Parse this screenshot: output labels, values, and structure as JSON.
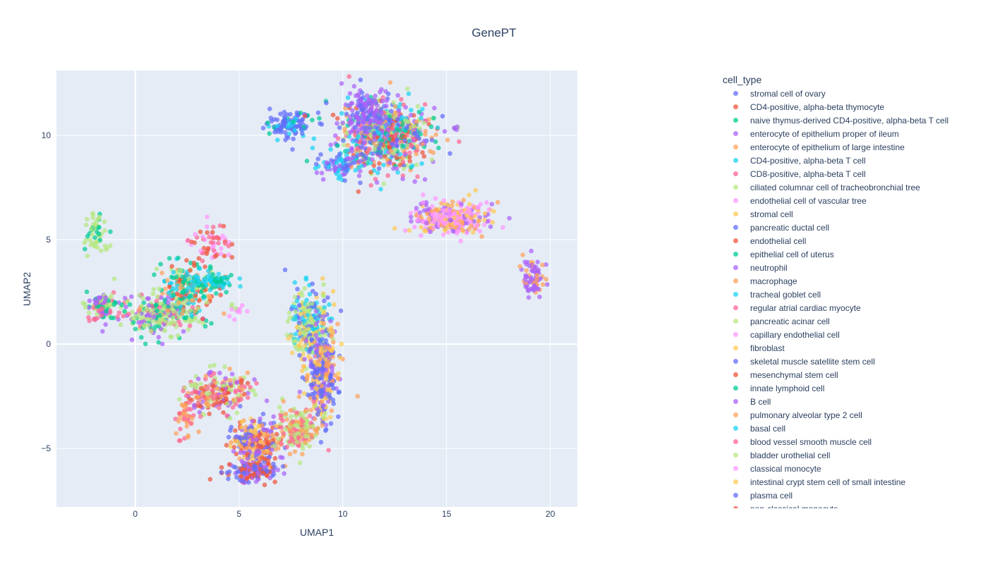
{
  "chart_data": {
    "type": "scatter",
    "title": "GenePT",
    "xlabel": "UMAP1",
    "ylabel": "UMAP2",
    "xlim": [
      -3.8,
      21.3
    ],
    "ylim": [
      -7.8,
      13.1
    ],
    "x_ticks": [
      0,
      5,
      10,
      15,
      20
    ],
    "x_tick_labels": [
      "0",
      "5",
      "10",
      "15",
      "20"
    ],
    "y_ticks": [
      -5,
      0,
      5,
      10
    ],
    "y_tick_labels": [
      "−5",
      "0",
      "5",
      "10"
    ],
    "grid": true,
    "legend_title": "cell_type",
    "legend_placement": "right",
    "legend": [
      {
        "name": "stromal cell of ovary",
        "color": "#636efa"
      },
      {
        "name": "CD4-positive, alpha-beta thymocyte",
        "color": "#EF553B"
      },
      {
        "name": "naive thymus-derived CD4-positive, alpha-beta T cell",
        "color": "#00cc96"
      },
      {
        "name": "enterocyte of epithelium proper of ileum",
        "color": "#ab63fa"
      },
      {
        "name": "enterocyte of epithelium of large intestine",
        "color": "#FFA15A"
      },
      {
        "name": "CD4-positive, alpha-beta T cell",
        "color": "#19d3f3"
      },
      {
        "name": "CD8-positive, alpha-beta T cell",
        "color": "#FF6692"
      },
      {
        "name": "ciliated columnar cell of tracheobronchial tree",
        "color": "#B6E880"
      },
      {
        "name": "endothelial cell of vascular tree",
        "color": "#FF97FF"
      },
      {
        "name": "stromal cell",
        "color": "#FECB52"
      },
      {
        "name": "pancreatic ductal cell",
        "color": "#636efa"
      },
      {
        "name": "endothelial cell",
        "color": "#EF553B"
      },
      {
        "name": "epithelial cell of uterus",
        "color": "#00cc96"
      },
      {
        "name": "neutrophil",
        "color": "#ab63fa"
      },
      {
        "name": "macrophage",
        "color": "#FFA15A"
      },
      {
        "name": "tracheal goblet cell",
        "color": "#19d3f3"
      },
      {
        "name": "regular atrial cardiac myocyte",
        "color": "#FF6692"
      },
      {
        "name": "pancreatic acinar cell",
        "color": "#B6E880"
      },
      {
        "name": "capillary endothelial cell",
        "color": "#FF97FF"
      },
      {
        "name": "fibroblast",
        "color": "#FECB52"
      },
      {
        "name": "skeletal muscle satellite stem cell",
        "color": "#636efa"
      },
      {
        "name": "mesenchymal stem cell",
        "color": "#EF553B"
      },
      {
        "name": "innate lymphoid cell",
        "color": "#00cc96"
      },
      {
        "name": "B cell",
        "color": "#ab63fa"
      },
      {
        "name": "pulmonary alveolar type 2 cell",
        "color": "#FFA15A"
      },
      {
        "name": "basal cell",
        "color": "#19d3f3"
      },
      {
        "name": "blood vessel smooth muscle cell",
        "color": "#FF6692"
      },
      {
        "name": "bladder urothelial cell",
        "color": "#B6E880"
      },
      {
        "name": "classical monocyte",
        "color": "#FF97FF"
      },
      {
        "name": "intestinal crypt stem cell of small intestine",
        "color": "#FECB52"
      },
      {
        "name": "plasma cell",
        "color": "#636efa"
      },
      {
        "name": "non-classical monocyte",
        "color": "#EF553B"
      }
    ],
    "clusters": [
      {
        "cx": 7.4,
        "cy": 10.5,
        "sx": 0.6,
        "sy": 0.3,
        "n": 110,
        "palette": [
          "#636efa",
          "#636efa",
          "#636efa",
          "#00cc96",
          "#19d3f3"
        ]
      },
      {
        "cx": 12.0,
        "cy": 10.0,
        "sx": 1.1,
        "sy": 0.8,
        "n": 700,
        "palette": [
          "#00cc96",
          "#19d3f3",
          "#FF6692",
          "#ab63fa",
          "#EF553B",
          "#FFA15A",
          "#636efa",
          "#B6E880"
        ]
      },
      {
        "cx": 11.2,
        "cy": 11.0,
        "sx": 0.6,
        "sy": 0.6,
        "n": 150,
        "palette": [
          "#ab63fa",
          "#ab63fa",
          "#636efa"
        ]
      },
      {
        "cx": 10.0,
        "cy": 8.6,
        "sx": 0.5,
        "sy": 0.3,
        "n": 90,
        "palette": [
          "#ab63fa",
          "#636efa",
          "#19d3f3"
        ]
      },
      {
        "cx": 15.2,
        "cy": 6.0,
        "sx": 0.9,
        "sy": 0.4,
        "n": 320,
        "palette": [
          "#FF97FF",
          "#FF97FF",
          "#FFA15A",
          "#FECB52",
          "#ab63fa"
        ]
      },
      {
        "cx": 19.2,
        "cy": 3.2,
        "sx": 0.25,
        "sy": 0.5,
        "n": 80,
        "palette": [
          "#ab63fa",
          "#ab63fa",
          "#FFA15A"
        ]
      },
      {
        "cx": 1.2,
        "cy": 1.4,
        "sx": 0.9,
        "sy": 0.5,
        "n": 260,
        "palette": [
          "#B6E880",
          "#B6E880",
          "#00cc96",
          "#FF6692",
          "#ab63fa"
        ]
      },
      {
        "cx": -1.5,
        "cy": 1.8,
        "sx": 0.4,
        "sy": 0.4,
        "n": 110,
        "palette": [
          "#ab63fa",
          "#00cc96",
          "#B6E880",
          "#FF6692"
        ]
      },
      {
        "cx": 2.6,
        "cy": 2.7,
        "sx": 0.7,
        "sy": 0.6,
        "n": 220,
        "palette": [
          "#FFA15A",
          "#00cc96",
          "#19d3f3",
          "#EF553B",
          "#B6E880"
        ]
      },
      {
        "cx": 3.6,
        "cy": 3.0,
        "sx": 0.6,
        "sy": 0.2,
        "n": 70,
        "palette": [
          "#19d3f3",
          "#19d3f3",
          "#00cc96"
        ]
      },
      {
        "cx": 3.7,
        "cy": 4.8,
        "sx": 0.5,
        "sy": 0.5,
        "n": 60,
        "palette": [
          "#FF6692",
          "#EF553B",
          "#FF97FF"
        ]
      },
      {
        "cx": -1.9,
        "cy": 5.4,
        "sx": 0.3,
        "sy": 0.5,
        "n": 55,
        "palette": [
          "#B6E880",
          "#B6E880",
          "#00cc96"
        ]
      },
      {
        "cx": 8.4,
        "cy": 1.0,
        "sx": 0.5,
        "sy": 0.8,
        "n": 250,
        "palette": [
          "#636efa",
          "#FECB52",
          "#B6E880",
          "#19d3f3"
        ]
      },
      {
        "cx": 9.0,
        "cy": -1.5,
        "sx": 0.4,
        "sy": 1.1,
        "n": 340,
        "palette": [
          "#636efa",
          "#636efa",
          "#FECB52",
          "#FFA15A",
          "#ab63fa"
        ]
      },
      {
        "cx": 4.0,
        "cy": -2.3,
        "sx": 0.8,
        "sy": 0.5,
        "n": 230,
        "palette": [
          "#FF6692",
          "#EF553B",
          "#B6E880",
          "#FFA15A",
          "#ab63fa"
        ]
      },
      {
        "cx": 5.8,
        "cy": -4.8,
        "sx": 0.6,
        "sy": 0.6,
        "n": 260,
        "palette": [
          "#EF553B",
          "#636efa",
          "#FFA15A",
          "#ab63fa",
          "#FECB52"
        ]
      },
      {
        "cx": 5.6,
        "cy": -6.1,
        "sx": 0.6,
        "sy": 0.25,
        "n": 130,
        "palette": [
          "#EF553B",
          "#636efa",
          "#ab63fa"
        ]
      },
      {
        "cx": 7.9,
        "cy": -4.0,
        "sx": 0.5,
        "sy": 0.5,
        "n": 180,
        "palette": [
          "#B6E880",
          "#B6E880",
          "#FFA15A",
          "#FF6692"
        ]
      },
      {
        "cx": 2.4,
        "cy": -3.6,
        "sx": 0.3,
        "sy": 0.6,
        "n": 40,
        "palette": [
          "#FF6692",
          "#FFA15A"
        ]
      },
      {
        "cx": 4.8,
        "cy": 1.7,
        "sx": 0.2,
        "sy": 0.2,
        "n": 12,
        "palette": [
          "#FF97FF",
          "#B6E880"
        ]
      },
      {
        "cx": 15.5,
        "cy": 10.3,
        "sx": 0.08,
        "sy": 0.06,
        "n": 6,
        "palette": [
          "#B6E880",
          "#ab63fa"
        ]
      }
    ]
  }
}
